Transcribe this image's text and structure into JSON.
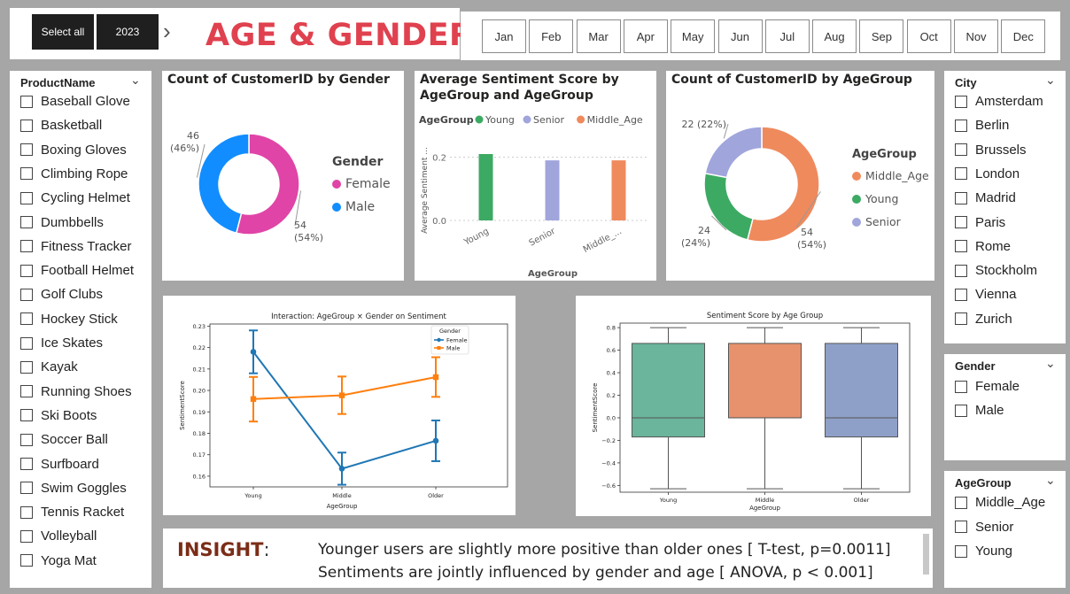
{
  "header": {
    "select_all": "Select all",
    "year": "2023",
    "chevron": "›",
    "title": "AGE & GENDER",
    "months": [
      "Jan",
      "Feb",
      "Mar",
      "Apr",
      "May",
      "Jun",
      "Jul",
      "Aug",
      "Sep",
      "Oct",
      "Nov",
      "Dec"
    ]
  },
  "slicers": {
    "product": {
      "title": "ProductName",
      "items": [
        "Baseball Glove",
        "Basketball",
        "Boxing Gloves",
        "Climbing Rope",
        "Cycling Helmet",
        "Dumbbells",
        "Fitness Tracker",
        "Football Helmet",
        "Golf Clubs",
        "Hockey Stick",
        "Ice Skates",
        "Kayak",
        "Running Shoes",
        "Ski Boots",
        "Soccer Ball",
        "Surfboard",
        "Swim Goggles",
        "Tennis Racket",
        "Volleyball",
        "Yoga Mat"
      ]
    },
    "city": {
      "title": "City",
      "items": [
        "Amsterdam",
        "Berlin",
        "Brussels",
        "London",
        "Madrid",
        "Paris",
        "Rome",
        "Stockholm",
        "Vienna",
        "Zurich"
      ]
    },
    "gender": {
      "title": "Gender",
      "items": [
        "Female",
        "Male"
      ]
    },
    "agegroup": {
      "title": "AgeGroup",
      "items": [
        "Middle_Age",
        "Senior",
        "Young"
      ]
    }
  },
  "insight": {
    "label": "INSIGHT",
    "colon": ":",
    "line1": "Younger users are slightly more positive than older ones [ T-test, p=0.0011]",
    "line2": "Sentiments are jointly influenced by gender and age [ ANOVA, p < 0.001]"
  },
  "chart_data": [
    {
      "type": "pie",
      "title": "Count of CustomerID by Gender",
      "legend_title": "Gender",
      "legend_position": "right",
      "slices": [
        {
          "label": "Female",
          "value": 54,
          "display": "54",
          "pct": "(54%)",
          "color": "#e044a7"
        },
        {
          "label": "Male",
          "value": 46,
          "display": "46",
          "pct": "(46%)",
          "color": "#118dff"
        }
      ]
    },
    {
      "type": "bar",
      "title_line1": "Average Sentiment Score by",
      "title_line2": "AgeGroup and AgeGroup",
      "legend_title": "AgeGroup",
      "legend_position": "top-left",
      "categories": [
        "Young",
        "Senior",
        "Middle_..."
      ],
      "series": [
        {
          "name": "Young",
          "color": "#3daa63"
        },
        {
          "name": "Senior",
          "color": "#a0a5dc"
        },
        {
          "name": "Middle_Age",
          "color": "#ef8a5d"
        }
      ],
      "values": [
        0.21,
        0.19,
        0.19
      ],
      "yticks": [
        "0.2",
        "0.0"
      ],
      "ylim": [
        0,
        0.21
      ],
      "xlabel": "AgeGroup",
      "ylabel": "Average Sentiment ..."
    },
    {
      "type": "pie",
      "title": "Count of CustomerID by AgeGroup",
      "legend_title": "AgeGroup",
      "legend_position": "right",
      "slices": [
        {
          "label": "Middle_Age",
          "value": 54,
          "display": "54",
          "pct": "(54%)",
          "color": "#ef8a5d"
        },
        {
          "label": "Young",
          "value": 24,
          "display": "24",
          "pct": "(24%)",
          "color": "#3daa63"
        },
        {
          "label": "Senior",
          "value": 22,
          "display": "22 (22%)",
          "pct": "",
          "color": "#a0a5dc"
        }
      ]
    },
    {
      "type": "line",
      "title": "Interaction: AgeGroup × Gender on Sentiment",
      "xlabel": "AgeGroup",
      "ylabel": "SentimentScore",
      "x": [
        "Young",
        "Middle",
        "Older"
      ],
      "ylim": [
        0.155,
        0.231
      ],
      "yticks": [
        0.16,
        0.17,
        0.18,
        0.19,
        0.2,
        0.21,
        0.22,
        0.23
      ],
      "ytick_labels": [
        "0.16",
        "0.17",
        "0.18",
        "0.19",
        "0.20",
        "0.21",
        "0.22",
        "0.23"
      ],
      "legend_title": "Gender",
      "legend_position": "top-right",
      "series": [
        {
          "name": "Female",
          "values": [
            0.218,
            0.1635,
            0.1765
          ],
          "err_lo": [
            0.208,
            0.156,
            0.167
          ],
          "err_hi": [
            0.228,
            0.171,
            0.186
          ],
          "color": "#1f77b4",
          "marker": "circle"
        },
        {
          "name": "Male",
          "values": [
            0.196,
            0.1977,
            0.2062
          ],
          "err_lo": [
            0.1855,
            0.189,
            0.197
          ],
          "err_hi": [
            0.2063,
            0.2065,
            0.2155
          ],
          "color": "#ff7f0e",
          "marker": "square"
        }
      ]
    },
    {
      "type": "box",
      "title": "Sentiment Score by Age Group",
      "xlabel": "AgeGroup",
      "ylabel": "SentimentScore",
      "categories": [
        "Young",
        "Middle",
        "Older"
      ],
      "ylim": [
        -0.66,
        0.84
      ],
      "yticks": [
        -0.6,
        -0.4,
        -0.2,
        0.0,
        0.2,
        0.4,
        0.6,
        0.8
      ],
      "ytick_labels": [
        "−0.6",
        "−0.4",
        "−0.2",
        "0.0",
        "0.2",
        "0.4",
        "0.6",
        "0.8"
      ],
      "boxes": [
        {
          "min": -0.63,
          "q1": -0.17,
          "median": 0.0,
          "q3": 0.66,
          "max": 0.8,
          "color": "#6ab59c"
        },
        {
          "min": -0.63,
          "q1": 0.0,
          "median": 0.0,
          "q3": 0.66,
          "max": 0.8,
          "color": "#e8926d"
        },
        {
          "min": -0.63,
          "q1": -0.17,
          "median": 0.0,
          "q3": 0.66,
          "max": 0.8,
          "color": "#8fa0c8"
        }
      ]
    }
  ]
}
